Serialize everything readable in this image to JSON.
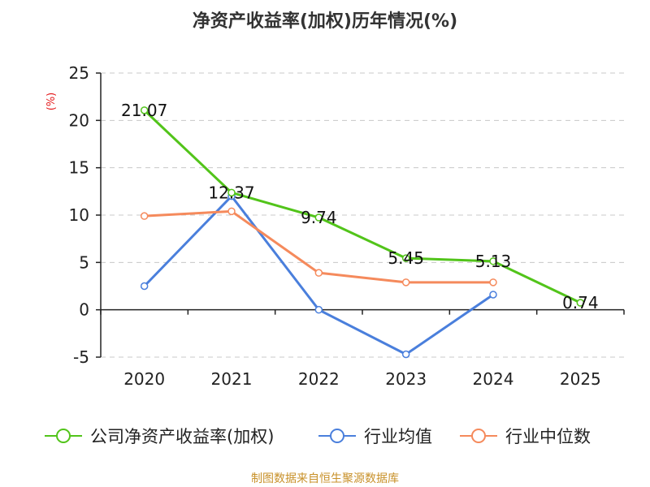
{
  "chart_data": {
    "type": "line",
    "title": "净资产收益率(加权)历年情况(%)",
    "ylabel": "(%)",
    "xlabel": "",
    "categories": [
      "2020",
      "2021",
      "2022",
      "2023",
      "2024",
      "2025"
    ],
    "ylim": [
      -5,
      25
    ],
    "yticks": [
      -5,
      0,
      5,
      10,
      15,
      20,
      25
    ],
    "grid": true,
    "legend_position": "bottom",
    "series": [
      {
        "name": "公司净资产收益率(加权)",
        "color": "#52c41a",
        "values": [
          21.07,
          12.37,
          9.74,
          5.45,
          5.13,
          0.74
        ],
        "labels": [
          "21.07",
          "12.37",
          "9.74",
          "5.45",
          "5.13",
          "0.74"
        ]
      },
      {
        "name": "行业均值",
        "color": "#4a7fdc",
        "values": [
          2.5,
          12.0,
          0.0,
          -4.7,
          1.6,
          null
        ]
      },
      {
        "name": "行业中位数",
        "color": "#f58a5c",
        "values": [
          9.9,
          10.4,
          3.9,
          2.9,
          2.9,
          null
        ]
      }
    ]
  },
  "source": "制图数据来自恒生聚源数据库"
}
